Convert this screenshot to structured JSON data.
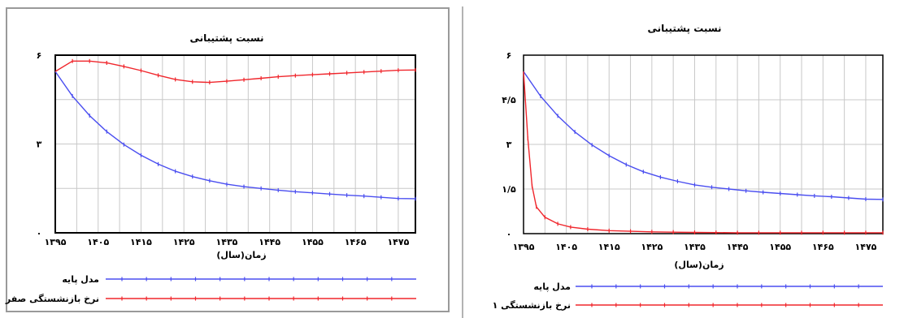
{
  "chart_data": [
    {
      "type": "line",
      "title": "نسبت پشتیبانی",
      "xlabel": "زمان(سال)",
      "ylabel": "",
      "xlim": [
        1395,
        1479
      ],
      "ylim": [
        0,
        6
      ],
      "x_ticks": [
        1395,
        1405,
        1415,
        1425,
        1435,
        1445,
        1455,
        1465,
        1475
      ],
      "x_tick_labels": [
        "۱۳۹۵",
        "۱۴۰۵",
        "۱۴۱۵",
        "۱۴۲۵",
        "۱۴۳۵",
        "۱۴۴۵",
        "۱۴۵۵",
        "۱۴۶۵",
        "۱۴۷۵"
      ],
      "y_ticks": [
        0,
        3,
        6
      ],
      "y_tick_labels": [
        "۰",
        "۳",
        "۶"
      ],
      "grid": true,
      "legend": "bottom",
      "series": [
        {
          "name": "مدل پایه",
          "color": "#4a4ef0",
          "x": [
            1395,
            1399,
            1403,
            1407,
            1411,
            1415,
            1419,
            1423,
            1427,
            1431,
            1435,
            1439,
            1443,
            1447,
            1451,
            1455,
            1459,
            1463,
            1467,
            1471,
            1475,
            1479
          ],
          "y": [
            5.45,
            4.62,
            3.96,
            3.42,
            2.98,
            2.62,
            2.32,
            2.08,
            1.9,
            1.76,
            1.64,
            1.56,
            1.5,
            1.44,
            1.39,
            1.35,
            1.31,
            1.27,
            1.24,
            1.2,
            1.16,
            1.15
          ]
        },
        {
          "name": "نرخ بازنشستگی صفر",
          "color": "#f0262c",
          "x": [
            1395,
            1399,
            1403,
            1407,
            1411,
            1415,
            1419,
            1423,
            1427,
            1431,
            1435,
            1439,
            1443,
            1447,
            1451,
            1455,
            1459,
            1463,
            1467,
            1471,
            1475,
            1479
          ],
          "y": [
            5.45,
            5.8,
            5.8,
            5.74,
            5.62,
            5.48,
            5.32,
            5.18,
            5.1,
            5.08,
            5.12,
            5.17,
            5.22,
            5.27,
            5.31,
            5.34,
            5.37,
            5.4,
            5.43,
            5.46,
            5.49,
            5.5
          ]
        }
      ]
    },
    {
      "type": "line",
      "title": "نسبت پشتیبانی",
      "xlabel": "زمان(سال)",
      "ylabel": "",
      "xlim": [
        1395,
        1479
      ],
      "ylim": [
        0,
        6
      ],
      "x_ticks": [
        1395,
        1405,
        1415,
        1425,
        1435,
        1445,
        1455,
        1465,
        1475
      ],
      "x_tick_labels": [
        "۱۳۹۵",
        "۱۴۰۵",
        "۱۴۱۵",
        "۱۴۲۵",
        "۱۴۳۵",
        "۱۴۴۵",
        "۱۴۵۵",
        "۱۴۶۵",
        "۱۴۷۵"
      ],
      "y_ticks": [
        0,
        1.5,
        3,
        4.5,
        6
      ],
      "y_tick_labels": [
        "۰",
        "۱/۵",
        "۳",
        "۴/۵",
        "۶"
      ],
      "grid": true,
      "legend": "bottom",
      "series": [
        {
          "name": "مدل پایه",
          "color": "#4a4ef0",
          "x": [
            1395,
            1399,
            1403,
            1407,
            1411,
            1415,
            1419,
            1423,
            1427,
            1431,
            1435,
            1439,
            1443,
            1447,
            1451,
            1455,
            1459,
            1463,
            1467,
            1471,
            1475,
            1479
          ],
          "y": [
            5.45,
            4.62,
            3.96,
            3.42,
            2.98,
            2.62,
            2.32,
            2.08,
            1.9,
            1.76,
            1.64,
            1.56,
            1.5,
            1.44,
            1.39,
            1.35,
            1.31,
            1.27,
            1.24,
            1.2,
            1.16,
            1.15
          ]
        },
        {
          "name": "نرخ بازنشستگی ۱",
          "color": "#f0262c",
          "x": [
            1395,
            1396,
            1397,
            1398,
            1400,
            1403,
            1406,
            1410,
            1415,
            1420,
            1425,
            1430,
            1435,
            1440,
            1445,
            1450,
            1455,
            1460,
            1465,
            1470,
            1475,
            1479
          ],
          "y": [
            5.45,
            3.2,
            1.6,
            0.9,
            0.55,
            0.33,
            0.22,
            0.15,
            0.1,
            0.08,
            0.06,
            0.05,
            0.04,
            0.035,
            0.03,
            0.03,
            0.03,
            0.03,
            0.03,
            0.03,
            0.03,
            0.03
          ]
        }
      ]
    }
  ]
}
